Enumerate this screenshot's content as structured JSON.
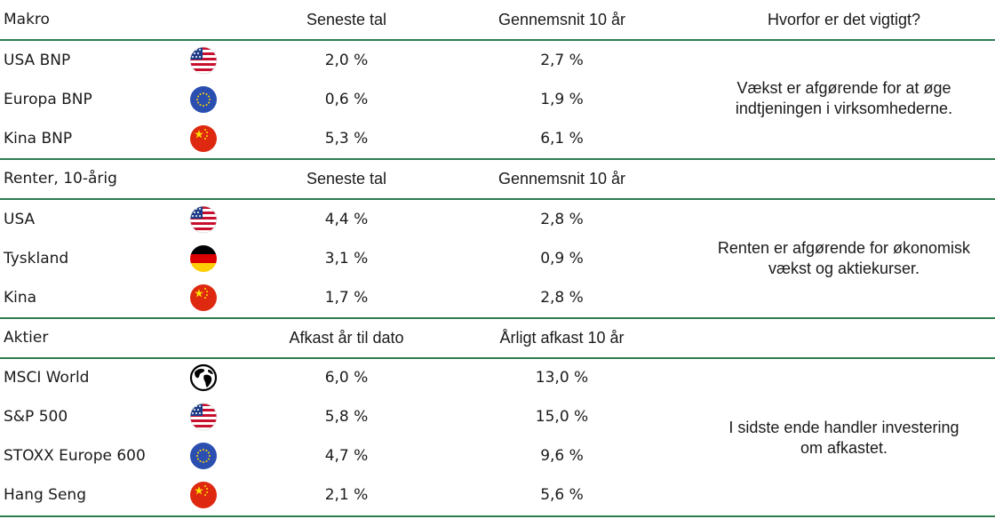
{
  "sections": [
    {
      "header": {
        "label": "Makro",
        "col1": "Seneste tal",
        "col2": "Gennemsnit 10 år",
        "why_header": "Hvorfor er det vigtigt?"
      },
      "rows": [
        {
          "name": "USA BNP",
          "icon": "us-flag-icon",
          "v1": "2,0 %",
          "v2": "2,7 %"
        },
        {
          "name": "Europa BNP",
          "icon": "eu-flag-icon",
          "v1": "0,6 %",
          "v2": "1,9 %"
        },
        {
          "name": "Kina BNP",
          "icon": "china-flag-icon",
          "v1": "5,3 %",
          "v2": "6,1 %"
        }
      ],
      "why": [
        "Vækst er afgørende for at øge",
        "indtjeningen i virksomhederne."
      ]
    },
    {
      "header": {
        "label": "Renter, 10-årig",
        "col1": "Seneste tal",
        "col2": "Gennemsnit 10 år"
      },
      "rows": [
        {
          "name": "USA",
          "icon": "us-flag-icon",
          "v1": "4,4 %",
          "v2": "2,8 %"
        },
        {
          "name": "Tyskland",
          "icon": "germany-flag-icon",
          "v1": "3,1 %",
          "v2": "0,9 %"
        },
        {
          "name": "Kina",
          "icon": "china-flag-icon",
          "v1": "1,7 %",
          "v2": "2,8 %"
        }
      ],
      "why": [
        "Renten er afgørende for økonomisk",
        "vækst og aktiekurser."
      ]
    },
    {
      "header": {
        "label": "Aktier",
        "col1": "Afkast år til dato",
        "col2": "Årligt afkast 10 år"
      },
      "rows": [
        {
          "name": "MSCI World",
          "icon": "globe-icon",
          "v1": "6,0 %",
          "v2": "13,0 %"
        },
        {
          "name": "S&P 500",
          "icon": "us-flag-icon",
          "v1": "5,8 %",
          "v2": "15,0 %"
        },
        {
          "name": "STOXX Europe 600",
          "icon": "eu-flag-icon",
          "v1": "4,7 %",
          "v2": "9,6 %"
        },
        {
          "name": "Hang Seng",
          "icon": "china-flag-icon",
          "v1": "2,1 %",
          "v2": "5,6 %"
        }
      ],
      "why": [
        "I sidste ende handler investering",
        "om afkastet."
      ]
    }
  ],
  "colors": {
    "rule": "#2e7d4f"
  }
}
